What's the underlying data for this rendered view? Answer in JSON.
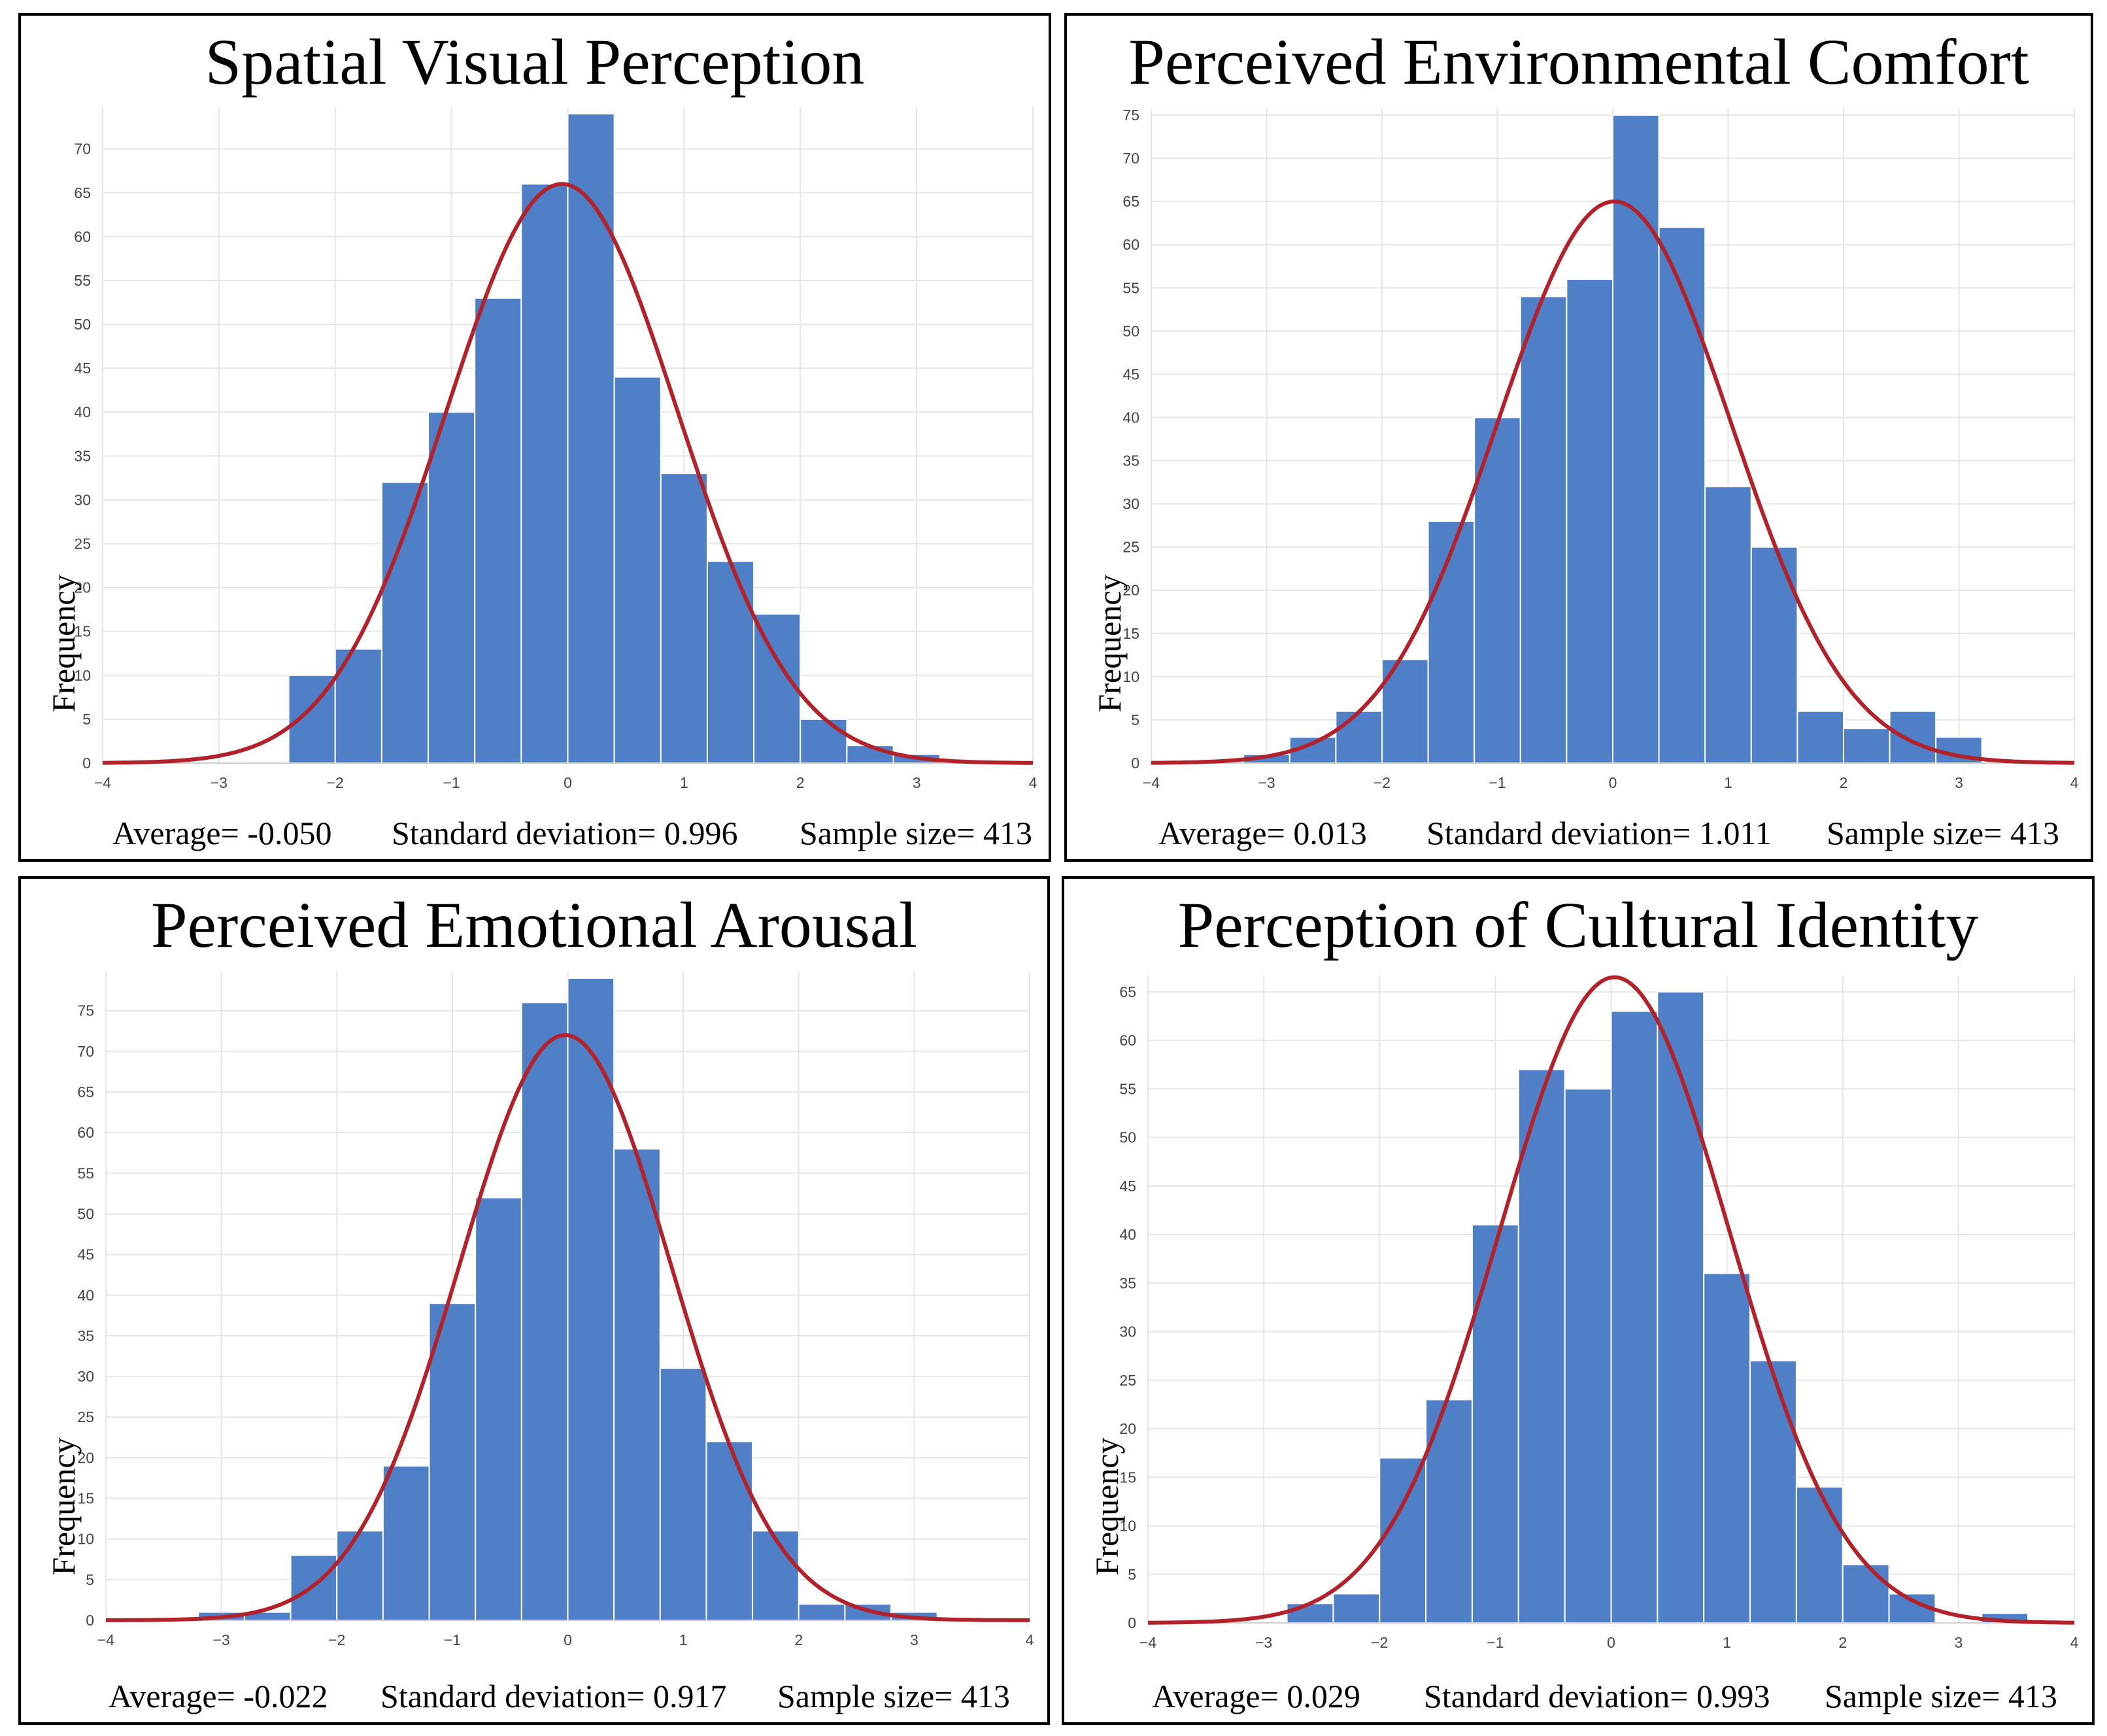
{
  "colors": {
    "bar": "#4f7fc6",
    "bar_edge": "#ffffff",
    "curve": "#b3222a",
    "grid": "#e6e6e6",
    "border": "#000000"
  },
  "chart_data": [
    {
      "type": "bar",
      "title": "Spatial Visual Perception",
      "ylabel": "Frequency",
      "xlabel": "",
      "xlim": [
        -4,
        4
      ],
      "ylim": [
        0,
        74
      ],
      "x_ticks": [
        "-4",
        "-3",
        "-2",
        "-1",
        "0",
        "1",
        "2",
        "3",
        "4"
      ],
      "y_ticks": [
        "0",
        "5",
        "10",
        "15",
        "20",
        "25",
        "30",
        "35",
        "40",
        "45",
        "50",
        "55",
        "60",
        "65",
        "70"
      ],
      "bin_start": -2.4,
      "bin_width": 0.4,
      "values": [
        10,
        13,
        32,
        40,
        53,
        66,
        74,
        44,
        33,
        23,
        17,
        5,
        2,
        1
      ],
      "curve": {
        "mean": -0.05,
        "sd": 0.996,
        "peak": 66
      },
      "stats": {
        "average": "Average= -0.050",
        "std": "Standard deviation= 0.996",
        "sample": "Sample size= 413"
      }
    },
    {
      "type": "bar",
      "title": "Perceived Environmental Comfort",
      "ylabel": "Frequency",
      "xlabel": "",
      "xlim": [
        -4,
        4
      ],
      "ylim": [
        0,
        75
      ],
      "x_ticks": [
        "-4",
        "-3",
        "-2",
        "-1",
        "0",
        "1",
        "2",
        "3",
        "4"
      ],
      "y_ticks": [
        "0",
        "5",
        "10",
        "15",
        "20",
        "25",
        "30",
        "35",
        "40",
        "45",
        "50",
        "55",
        "60",
        "65",
        "70",
        "75"
      ],
      "bin_start": -3.2,
      "bin_width": 0.4,
      "values": [
        1,
        3,
        6,
        12,
        28,
        40,
        54,
        56,
        75,
        62,
        32,
        25,
        6,
        4,
        6,
        3
      ],
      "curve": {
        "mean": 0.013,
        "sd": 1.011,
        "peak": 65
      },
      "stats": {
        "average": "Average= 0.013",
        "std": "Standard deviation= 1.011",
        "sample": "Sample size= 413"
      }
    },
    {
      "type": "bar",
      "title": "Perceived Emotional Arousal",
      "ylabel": "Frequency",
      "xlabel": "",
      "xlim": [
        -4,
        4
      ],
      "ylim": [
        0,
        79
      ],
      "x_ticks": [
        "-4",
        "-3",
        "-2",
        "-1",
        "0",
        "1",
        "2",
        "3",
        "4"
      ],
      "y_ticks": [
        "0",
        "5",
        "10",
        "15",
        "20",
        "25",
        "30",
        "35",
        "40",
        "45",
        "50",
        "55",
        "60",
        "65",
        "70",
        "75"
      ],
      "bin_start": -3.2,
      "bin_width": 0.4,
      "values": [
        1,
        1,
        8,
        11,
        19,
        39,
        52,
        76,
        79,
        58,
        31,
        22,
        11,
        2,
        2,
        1
      ],
      "curve": {
        "mean": -0.022,
        "sd": 0.917,
        "peak": 72
      },
      "stats": {
        "average": "Average= -0.022",
        "std": "Standard deviation= 0.917",
        "sample": "Sample size= 413"
      }
    },
    {
      "type": "bar",
      "title": "Perception of Cultural Identity",
      "ylabel": "Frequency",
      "xlabel": "",
      "xlim": [
        -4,
        4
      ],
      "ylim": [
        0,
        66
      ],
      "x_ticks": [
        "-4",
        "-3",
        "-2",
        "-1",
        "0",
        "1",
        "2",
        "3",
        "4"
      ],
      "y_ticks": [
        "0",
        "5",
        "10",
        "15",
        "20",
        "25",
        "30",
        "35",
        "40",
        "45",
        "50",
        "55",
        "60",
        "65"
      ],
      "bin_start": -2.8,
      "bin_width": 0.4,
      "values": [
        2,
        3,
        17,
        23,
        41,
        57,
        55,
        63,
        65,
        36,
        27,
        14,
        6,
        3,
        0,
        1
      ],
      "curve": {
        "mean": 0.029,
        "sd": 0.993,
        "peak": 66.5
      },
      "stats": {
        "average": "Average= 0.029",
        "std": "Standard deviation= 0.993",
        "sample": "Sample size= 413"
      }
    }
  ]
}
